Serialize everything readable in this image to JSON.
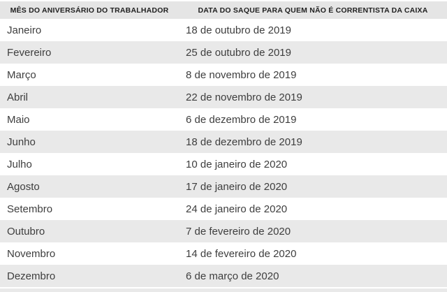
{
  "table": {
    "headers": [
      "MÊS DO ANIVERSÁRIO DO TRABALHADOR",
      "DATA DO SAQUE PARA QUEM NÃO É CORRENTISTA DA CAIXA"
    ],
    "rows": [
      {
        "month": "Janeiro",
        "date": "18 de outubro de 2019"
      },
      {
        "month": "Fevereiro",
        "date": "25 de outubro de 2019"
      },
      {
        "month": "Março",
        "date": "8 de novembro de 2019"
      },
      {
        "month": "Abril",
        "date": "22 de novembro de 2019"
      },
      {
        "month": "Maio",
        "date": "6 de dezembro de 2019"
      },
      {
        "month": "Junho",
        "date": "18 de dezembro de 2019"
      },
      {
        "month": "Julho",
        "date": "10 de janeiro de 2020"
      },
      {
        "month": "Agosto",
        "date": "17 de janeiro de 2020"
      },
      {
        "month": "Setembro",
        "date": "24 de janeiro de 2020"
      },
      {
        "month": "Outubro",
        "date": "7 de fevereiro de 2020"
      },
      {
        "month": "Novembro",
        "date": "14 de fevereiro de 2020"
      },
      {
        "month": "Dezembro",
        "date": "6 de março de 2020"
      }
    ]
  },
  "colors": {
    "header_bg": "#e5e5e5",
    "row_alt_bg": "#e9e9e9",
    "header_text": "#212121",
    "body_text": "#3e3e3e",
    "background": "#ffffff"
  },
  "chart_data": {
    "type": "table",
    "title": "",
    "columns": [
      "MÊS DO ANIVERSÁRIO DO TRABALHADOR",
      "DATA DO SAQUE PARA QUEM NÃO É CORRENTISTA DA CAIXA"
    ],
    "rows": [
      [
        "Janeiro",
        "18 de outubro de 2019"
      ],
      [
        "Fevereiro",
        "25 de outubro de 2019"
      ],
      [
        "Março",
        "8 de novembro de 2019"
      ],
      [
        "Abril",
        "22 de novembro de 2019"
      ],
      [
        "Maio",
        "6 de dezembro de 2019"
      ],
      [
        "Junho",
        "18 de dezembro de 2019"
      ],
      [
        "Julho",
        "10 de janeiro de 2020"
      ],
      [
        "Agosto",
        "17 de janeiro de 2020"
      ],
      [
        "Setembro",
        "24 de janeiro de 2020"
      ],
      [
        "Outubro",
        "7 de fevereiro de 2020"
      ],
      [
        "Novembro",
        "14 de fevereiro de 2020"
      ],
      [
        "Dezembro",
        "6 de março de 2020"
      ]
    ],
    "layout": {
      "zebra_striping": true,
      "first_data_row_background": "white",
      "grid": "off",
      "header_alignment": "center",
      "body_alignment": "left"
    }
  }
}
